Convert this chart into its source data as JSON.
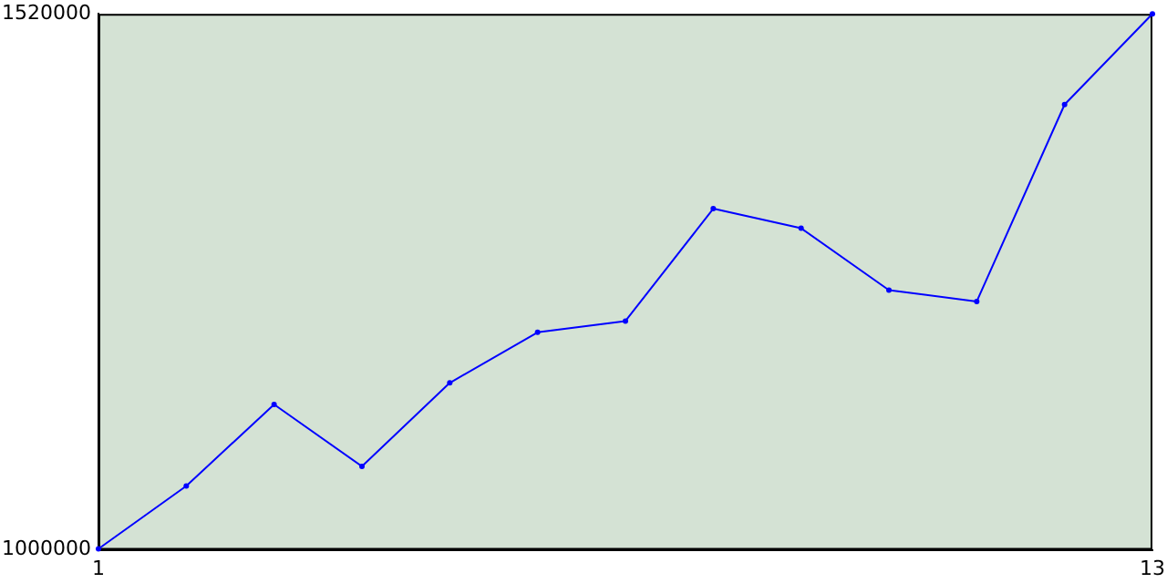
{
  "chart_data": {
    "type": "line",
    "x": [
      1,
      2,
      3,
      4,
      5,
      6,
      7,
      8,
      9,
      10,
      11,
      12,
      13
    ],
    "series": [
      {
        "color": "#0000ff",
        "values": [
          1001000,
          1062000,
          1141000,
          1081000,
          1162000,
          1211000,
          1222000,
          1331000,
          1312000,
          1252000,
          1241000,
          1432000,
          1520000
        ]
      }
    ],
    "xlim": [
      1,
      13
    ],
    "xticks": [
      1,
      13
    ],
    "ylim": [
      1000000,
      1520000
    ],
    "yticks": [
      1000000,
      1520000
    ],
    "grid": false,
    "legend": false,
    "marker": "circle",
    "line_style": "solid"
  }
}
